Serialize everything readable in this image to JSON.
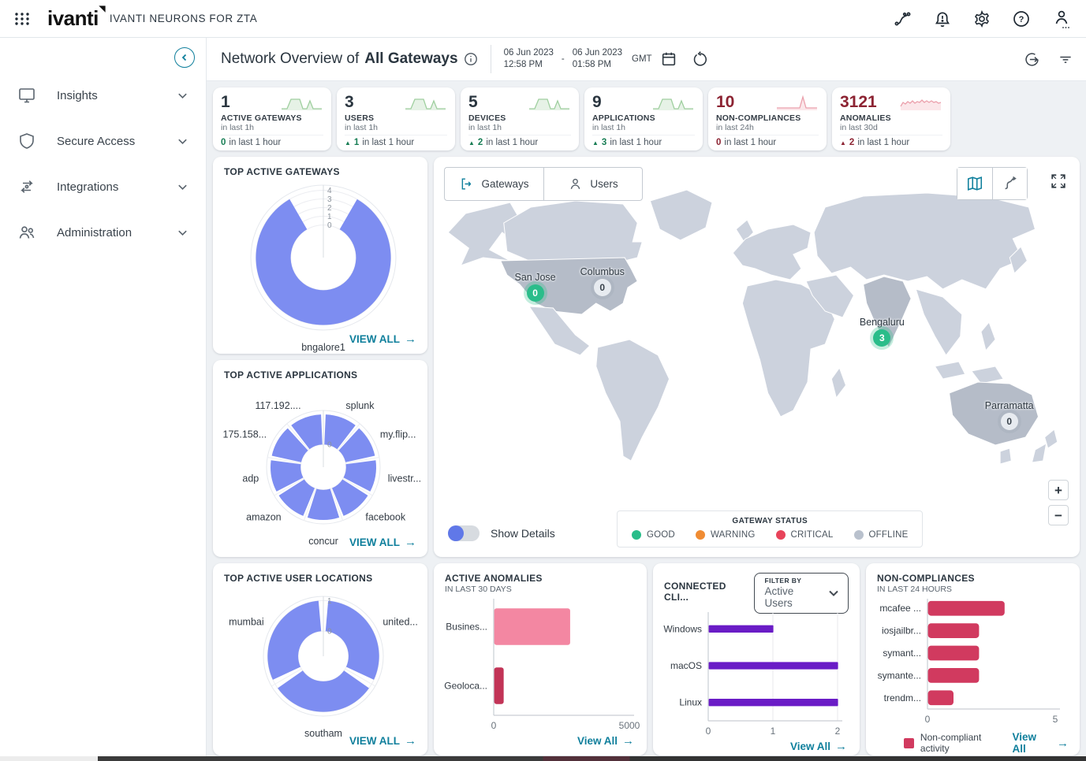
{
  "topbar": {
    "brand": "ivanti",
    "product": "IVANTI NEURONS FOR ZTA"
  },
  "sidebar": {
    "items": [
      {
        "label": "Insights",
        "icon": "monitor-icon"
      },
      {
        "label": "Secure Access",
        "icon": "shield-icon"
      },
      {
        "label": "Integrations",
        "icon": "integrations-icon"
      },
      {
        "label": "Administration",
        "icon": "people-icon"
      }
    ]
  },
  "header": {
    "title_prefix": "Network Overview of",
    "title_scope": "All Gateways",
    "date_from": {
      "date": "06 Jun 2023",
      "time": "12:58 PM"
    },
    "date_to": {
      "date": "06 Jun 2023",
      "time": "01:58 PM"
    },
    "timezone": "GMT"
  },
  "stats": [
    {
      "value": "1",
      "label": "ACTIVE GATEWAYS",
      "period": "in last 1h",
      "delta": "0",
      "delta_arrow": false,
      "delta_text": "in last 1 hour",
      "tone": "green",
      "trend_shape": "peaks"
    },
    {
      "value": "3",
      "label": "USERS",
      "period": "in last 1h",
      "delta": "1",
      "delta_arrow": true,
      "delta_text": "in last 1 hour",
      "tone": "green",
      "trend_shape": "peaks"
    },
    {
      "value": "5",
      "label": "DEVICES",
      "period": "in last 1h",
      "delta": "2",
      "delta_arrow": true,
      "delta_text": "in last 1 hour",
      "tone": "green",
      "trend_shape": "peaks"
    },
    {
      "value": "9",
      "label": "APPLICATIONS",
      "period": "in last 1h",
      "delta": "3",
      "delta_arrow": true,
      "delta_text": "in last 1 hour",
      "tone": "green",
      "trend_shape": "peaks"
    },
    {
      "value": "10",
      "label": "NON-COMPLIANCES",
      "period": "in last 24h",
      "delta": "0",
      "delta_arrow": false,
      "delta_text": "in last 1 hour",
      "tone": "red",
      "trend_shape": "spike"
    },
    {
      "value": "3121",
      "label": "ANOMALIES",
      "period": "in last 30d",
      "delta": "2",
      "delta_arrow": true,
      "delta_text": "in last 1 hour",
      "tone": "red",
      "trend_shape": "noisy"
    }
  ],
  "map": {
    "tabs": [
      {
        "label": "Gateways",
        "active": true
      },
      {
        "label": "Users",
        "active": false
      }
    ],
    "show_details_label": "Show Details",
    "legend_title": "GATEWAY STATUS",
    "legend": [
      {
        "label": "GOOD",
        "color": "#2abd8a"
      },
      {
        "label": "WARNING",
        "color": "#f08c33"
      },
      {
        "label": "CRITICAL",
        "color": "#e8445a"
      },
      {
        "label": "OFFLINE",
        "color": "#b9c1cd"
      }
    ],
    "markers": [
      {
        "name": "San Jose",
        "count": "0",
        "status": "good"
      },
      {
        "name": "Columbus",
        "count": "0",
        "status": "offline"
      },
      {
        "name": "Bengaluru",
        "count": "3",
        "status": "good"
      },
      {
        "name": "Parramatta",
        "count": "0",
        "status": "offline"
      }
    ]
  },
  "widgets": {
    "gateways_widget": {
      "title": "TOP ACTIVE GATEWAYS",
      "view_all": "VIEW ALL"
    },
    "applications_widget": {
      "title": "TOP ACTIVE APPLICATIONS",
      "view_all": "VIEW ALL"
    },
    "locations_widget": {
      "title": "TOP ACTIVE USER LOCATIONS",
      "view_all": "VIEW ALL"
    },
    "anomalies_widget": {
      "title": "ACTIVE ANOMALIES",
      "subtitle": "IN LAST 30 DAYS",
      "view_all": "View All"
    },
    "clients_widget": {
      "title": "CONNECTED CLI...",
      "filter_label": "FILTER BY",
      "filter_value": "Active Users",
      "view_all": "View All"
    },
    "noncompliance_widget": {
      "title": "NON-COMPLIANCES",
      "subtitle": "IN LAST 24 HOURS",
      "legend_label": "Non-compliant activity",
      "view_all": "View All"
    }
  },
  "chart_data": [
    {
      "id": "gateways-polar",
      "type": "polar_bar",
      "title": "TOP ACTIVE GATEWAYS",
      "categories": [
        "bngalore1"
      ],
      "values": [
        4
      ],
      "axis_max": 4,
      "ticks": [
        0,
        1,
        2,
        3,
        4
      ],
      "gap_deg": 30,
      "color": "#7d8df1"
    },
    {
      "id": "apps-polar",
      "type": "polar_bar",
      "title": "TOP ACTIVE APPLICATIONS",
      "categories": [
        "splunk",
        "my.flip...",
        "livestr...",
        "facebook",
        "concur",
        "amazon",
        "adp",
        "175.158...",
        "117.192...."
      ],
      "values": [
        1,
        1,
        1,
        1,
        1,
        1,
        1,
        1,
        1
      ],
      "axis_max": 1,
      "ticks": [
        0
      ],
      "gap_deg": 2.5,
      "color": "#7d8df1"
    },
    {
      "id": "locations-polar",
      "type": "polar_bar",
      "title": "TOP ACTIVE USER LOCATIONS",
      "categories": [
        "united...",
        "southam",
        "mumbai"
      ],
      "values": [
        1,
        1,
        1
      ],
      "axis_max": 1,
      "ticks": [
        0,
        1
      ],
      "gap_deg": 5,
      "color": "#7d8df1"
    },
    {
      "id": "anomalies-bar",
      "type": "bar",
      "title": "ACTIVE ANOMALIES",
      "subtitle": "IN LAST 30 DAYS",
      "categories": [
        "Busines...",
        "Geoloca..."
      ],
      "values": [
        2800,
        350
      ],
      "colors": [
        "#f387a2",
        "#c23457"
      ],
      "x_max": 5000,
      "x_ticks": [
        0,
        5000
      ],
      "grid": false
    },
    {
      "id": "clients-bar",
      "type": "bar",
      "title": "CONNECTED CLI...",
      "filter_by": "Active Users",
      "categories": [
        "Windows",
        "macOS",
        "Linux"
      ],
      "values": [
        1,
        2,
        2
      ],
      "colors": [
        "#6a1cc6"
      ],
      "x_max": 2,
      "x_ticks": [
        0,
        1,
        2
      ],
      "grid": true
    },
    {
      "id": "noncompliance-bar",
      "type": "bar",
      "title": "NON-COMPLIANCES",
      "subtitle": "IN LAST 24 HOURS",
      "categories": [
        "mcafee ...",
        "iosjailbr...",
        "symant...",
        "symante...",
        "trendm..."
      ],
      "values": [
        3,
        2,
        2,
        2,
        1
      ],
      "colors": [
        "#d13a5f"
      ],
      "x_max": 5,
      "x_ticks": [
        0,
        5
      ],
      "grid": false
    }
  ]
}
